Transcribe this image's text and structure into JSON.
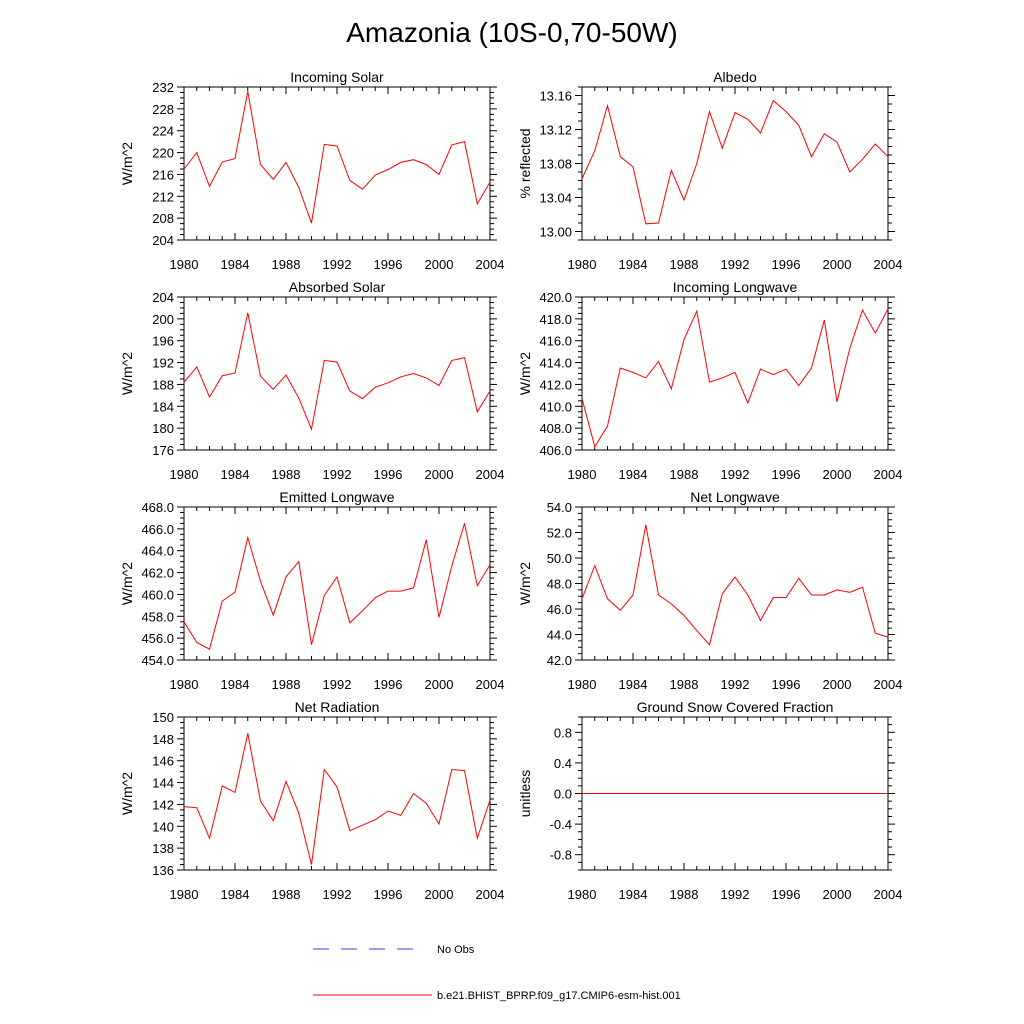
{
  "title": "Amazonia (10S-0,70-50W)",
  "colors": {
    "series": "#ff0000",
    "obs": "#3d3dcc",
    "axis": "#000000"
  },
  "years": [
    1980,
    1981,
    1982,
    1983,
    1984,
    1985,
    1986,
    1987,
    1988,
    1989,
    1990,
    1991,
    1992,
    1993,
    1994,
    1995,
    1996,
    1997,
    1998,
    1999,
    2000,
    2001,
    2002,
    2003,
    2004
  ],
  "chart_data": [
    {
      "type": "line",
      "title": "Incoming Solar",
      "ylabel": "W/m^2",
      "xlim": [
        1980,
        2004
      ],
      "ylim": [
        204,
        232
      ],
      "xticks": [
        1980,
        1984,
        1988,
        1992,
        1996,
        2000,
        2004
      ],
      "yticks": [
        204,
        208,
        212,
        216,
        220,
        224,
        228,
        232
      ],
      "ytick_labels": [
        "204",
        "208",
        "212",
        "216",
        "220",
        "224",
        "228",
        "232"
      ],
      "series": [
        {
          "values": [
            217.0,
            220.0,
            213.8,
            218.3,
            218.9,
            231.2,
            217.8,
            215.1,
            218.2,
            213.6,
            207.1,
            221.5,
            221.2,
            214.9,
            213.3,
            215.9,
            216.9,
            218.2,
            218.7,
            217.8,
            216.0,
            221.4,
            222.0,
            210.6,
            214.6
          ]
        }
      ]
    },
    {
      "type": "line",
      "title": "Albedo",
      "ylabel": "% reflected",
      "xlim": [
        1980,
        2004
      ],
      "ylim": [
        12.99,
        13.17
      ],
      "xticks": [
        1980,
        1984,
        1988,
        1992,
        1996,
        2000,
        2004
      ],
      "yticks": [
        13.0,
        13.04,
        13.08,
        13.12,
        13.16
      ],
      "ytick_labels": [
        "13.00",
        "13.04",
        "13.08",
        "13.12",
        "13.16"
      ],
      "series": [
        {
          "values": [
            13.062,
            13.095,
            13.148,
            13.088,
            13.076,
            13.009,
            13.01,
            13.072,
            13.037,
            13.08,
            13.141,
            13.098,
            13.14,
            13.132,
            13.116,
            13.154,
            13.141,
            13.125,
            13.088,
            13.115,
            13.105,
            13.07,
            13.085,
            13.103,
            13.088
          ]
        }
      ]
    },
    {
      "type": "line",
      "title": "Absorbed Solar",
      "ylabel": "W/m^2",
      "xlim": [
        1980,
        2004
      ],
      "ylim": [
        176,
        204
      ],
      "xticks": [
        1980,
        1984,
        1988,
        1992,
        1996,
        2000,
        2004
      ],
      "yticks": [
        176,
        180,
        184,
        188,
        192,
        196,
        200,
        204
      ],
      "ytick_labels": [
        "176",
        "180",
        "184",
        "188",
        "192",
        "196",
        "200",
        "204"
      ],
      "series": [
        {
          "values": [
            188.4,
            191.2,
            185.7,
            189.6,
            190.1,
            201.1,
            189.5,
            187.1,
            189.7,
            185.5,
            179.8,
            192.4,
            192.1,
            186.8,
            185.4,
            187.5,
            188.3,
            189.4,
            190.0,
            189.2,
            187.8,
            192.4,
            192.9,
            183.0,
            186.8
          ]
        }
      ]
    },
    {
      "type": "line",
      "title": "Incoming Longwave",
      "ylabel": "W/m^2",
      "xlim": [
        1980,
        2004
      ],
      "ylim": [
        406,
        420
      ],
      "xticks": [
        1980,
        1984,
        1988,
        1992,
        1996,
        2000,
        2004
      ],
      "yticks": [
        406,
        408,
        410,
        412,
        414,
        416,
        418,
        420
      ],
      "ytick_labels": [
        "406.0",
        "408.0",
        "410.0",
        "412.0",
        "414.0",
        "416.0",
        "418.0",
        "420.0"
      ],
      "series": [
        {
          "values": [
            410.7,
            406.3,
            408.2,
            413.5,
            413.1,
            412.6,
            414.1,
            411.6,
            416.1,
            418.7,
            412.2,
            412.6,
            413.1,
            410.3,
            413.4,
            412.9,
            413.4,
            411.9,
            413.5,
            417.9,
            410.4,
            415.3,
            418.8,
            416.7,
            418.9
          ]
        }
      ]
    },
    {
      "type": "line",
      "title": "Emitted Longwave",
      "ylabel": "W/m^2",
      "xlim": [
        1980,
        2004
      ],
      "ylim": [
        454,
        468
      ],
      "xticks": [
        1980,
        1984,
        1988,
        1992,
        1996,
        2000,
        2004
      ],
      "yticks": [
        454,
        456,
        458,
        460,
        462,
        464,
        466,
        468
      ],
      "ytick_labels": [
        "454.0",
        "456.0",
        "458.0",
        "460.0",
        "462.0",
        "464.0",
        "466.0",
        "468.0"
      ],
      "series": [
        {
          "values": [
            457.5,
            455.6,
            455.0,
            459.4,
            460.2,
            465.2,
            461.2,
            458.1,
            461.6,
            463.0,
            455.4,
            459.9,
            461.6,
            457.4,
            458.5,
            459.7,
            460.3,
            460.3,
            460.6,
            465.0,
            457.9,
            462.6,
            466.5,
            460.8,
            462.7
          ]
        }
      ]
    },
    {
      "type": "line",
      "title": "Net Longwave",
      "ylabel": "W/m^2",
      "xlim": [
        1980,
        2004
      ],
      "ylim": [
        42,
        54
      ],
      "xticks": [
        1980,
        1984,
        1988,
        1992,
        1996,
        2000,
        2004
      ],
      "yticks": [
        42,
        44,
        46,
        48,
        50,
        52,
        54
      ],
      "ytick_labels": [
        "42.0",
        "44.0",
        "46.0",
        "48.0",
        "50.0",
        "52.0",
        "54.0"
      ],
      "series": [
        {
          "values": [
            46.8,
            49.4,
            46.8,
            45.9,
            47.1,
            52.6,
            47.1,
            46.4,
            45.5,
            44.3,
            43.2,
            47.2,
            48.5,
            47.1,
            45.1,
            46.9,
            46.9,
            48.4,
            47.1,
            47.1,
            47.5,
            47.3,
            47.7,
            44.1,
            43.8
          ]
        }
      ]
    },
    {
      "type": "line",
      "title": "Net Radiation",
      "ylabel": "W/m^2",
      "xlim": [
        1980,
        2004
      ],
      "ylim": [
        136,
        150
      ],
      "xticks": [
        1980,
        1984,
        1988,
        1992,
        1996,
        2000,
        2004
      ],
      "yticks": [
        136,
        138,
        140,
        142,
        144,
        146,
        148,
        150
      ],
      "ytick_labels": [
        "136",
        "138",
        "140",
        "142",
        "144",
        "146",
        "148",
        "150"
      ],
      "series": [
        {
          "values": [
            141.8,
            141.7,
            138.9,
            143.7,
            143.1,
            148.5,
            142.3,
            140.5,
            144.1,
            141.2,
            136.5,
            145.2,
            143.6,
            139.6,
            140.1,
            140.6,
            141.4,
            141.0,
            143.0,
            142.1,
            140.2,
            145.2,
            145.1,
            138.9,
            142.4
          ]
        }
      ]
    },
    {
      "type": "line",
      "title": "Ground Snow Covered Fraction",
      "ylabel": "unitless",
      "xlim": [
        1980,
        2004
      ],
      "ylim": [
        -1.0,
        1.0
      ],
      "xticks": [
        1980,
        1984,
        1988,
        1992,
        1996,
        2000,
        2004
      ],
      "yticks": [
        -0.8,
        -0.4,
        0.0,
        0.4,
        0.8
      ],
      "ytick_labels": [
        "-0.8",
        "-0.4",
        "0.0",
        "0.4",
        "0.8"
      ],
      "series": [
        {
          "values": [
            0,
            0,
            0,
            0,
            0,
            0,
            0,
            0,
            0,
            0,
            0,
            0,
            0,
            0,
            0,
            0,
            0,
            0,
            0,
            0,
            0,
            0,
            0,
            0,
            0
          ]
        }
      ]
    }
  ],
  "legend": [
    {
      "label": "No Obs",
      "style": "dashed"
    },
    {
      "label": "b.e21.BHIST_BPRP.f09_g17.CMIP6-esm-hist.001",
      "style": "solid"
    }
  ]
}
